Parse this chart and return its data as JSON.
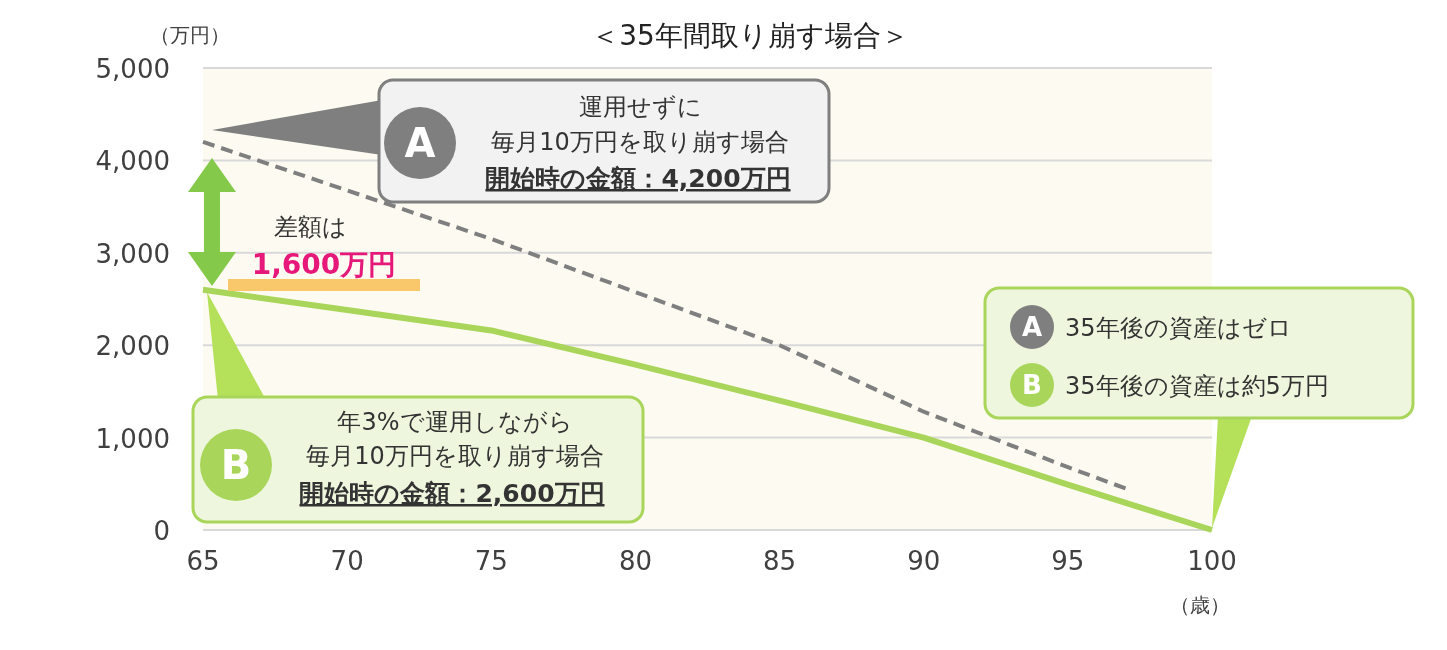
{
  "chart_data": {
    "type": "line",
    "title": "＜35年間取り崩す場合＞",
    "ylabel": "（万円）",
    "xlabel": "（歳）",
    "xlim": [
      65,
      100
    ],
    "ylim": [
      0,
      5000
    ],
    "xticks": [
      65,
      70,
      75,
      80,
      85,
      90,
      95,
      100
    ],
    "yticks": [
      0,
      {
        "value": 1000,
        "label": "1,000"
      },
      {
        "value": 2000,
        "label": "2,000"
      },
      {
        "value": 3000,
        "label": "3,000"
      },
      {
        "value": 4000,
        "label": "4,000"
      },
      {
        "value": 5000,
        "label": "5,000"
      }
    ],
    "grid": "y",
    "marker": "none",
    "series": [
      {
        "name": "A",
        "color": "#7f7f7f",
        "line_style": "dashed",
        "x": [
          65,
          75,
          85,
          90,
          95,
          97
        ],
        "values": [
          4200,
          3150,
          2000,
          1280,
          680,
          450
        ]
      },
      {
        "name": "B",
        "color": "#a9d65a",
        "line_style": "solid",
        "x": [
          65,
          70,
          75,
          80,
          85,
          90,
          95,
          100
        ],
        "values": [
          2600,
          2380,
          2160,
          1790,
          1400,
          1000,
          490,
          0
        ]
      }
    ],
    "annotations": [
      "運用せずに",
      "毎月10万円を取り崩す場合",
      "開始時の金額：4,200万円",
      "差額は",
      "1,600万円",
      "年3%で運用しながら",
      "毎月10万円を取り崩す場合",
      "開始時の金額：2,600万円",
      "35年後の資産はゼロ",
      "35年後の資産は約5万円"
    ]
  }
}
